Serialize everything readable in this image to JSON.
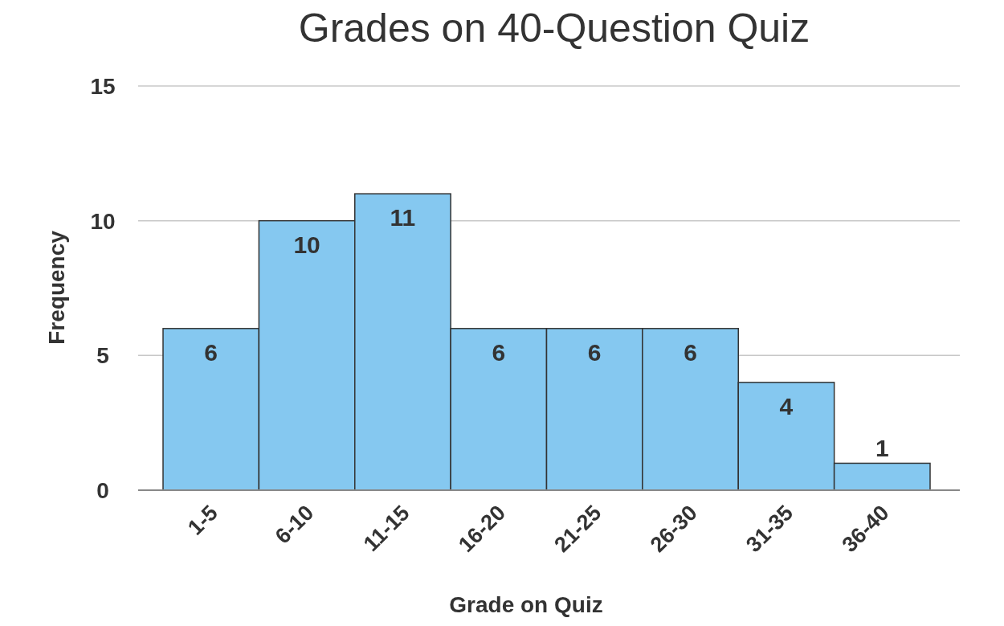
{
  "chart_data": {
    "type": "bar",
    "title": "Grades on 40-Question Quiz",
    "xlabel": "Grade on Quiz",
    "ylabel": "Frequency",
    "categories": [
      "1-5",
      "6-10",
      "11-15",
      "16-20",
      "21-25",
      "26-30",
      "31-35",
      "36-40"
    ],
    "values": [
      6,
      10,
      11,
      6,
      6,
      6,
      4,
      1
    ],
    "color": "#85c8f0",
    "ylim": [
      0,
      15
    ],
    "yticks": [
      0,
      5,
      10,
      15
    ],
    "grid": "y",
    "data_labels": true
  }
}
